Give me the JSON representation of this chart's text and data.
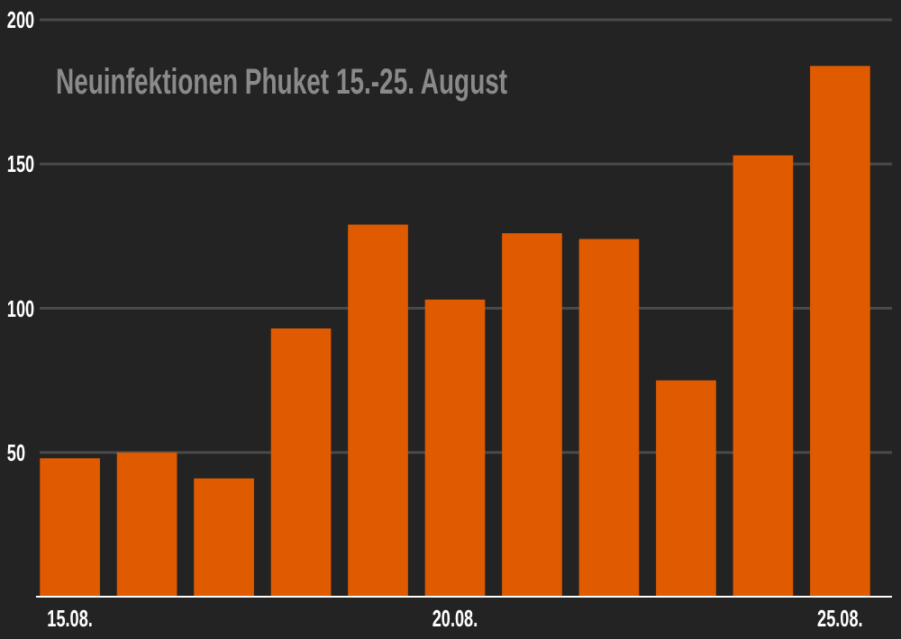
{
  "chart_data": {
    "type": "bar",
    "title": "Neuinfektionen Phuket 15.-25. August",
    "categories": [
      "15.08.",
      null,
      null,
      null,
      null,
      "20.08.",
      null,
      null,
      null,
      null,
      "25.08."
    ],
    "values": [
      48,
      50,
      41,
      93,
      129,
      103,
      126,
      124,
      75,
      153,
      184
    ],
    "color": "#e05a00",
    "ylim": [
      0,
      200
    ],
    "yticks": [
      50,
      100,
      150,
      200
    ],
    "grid": "y"
  }
}
